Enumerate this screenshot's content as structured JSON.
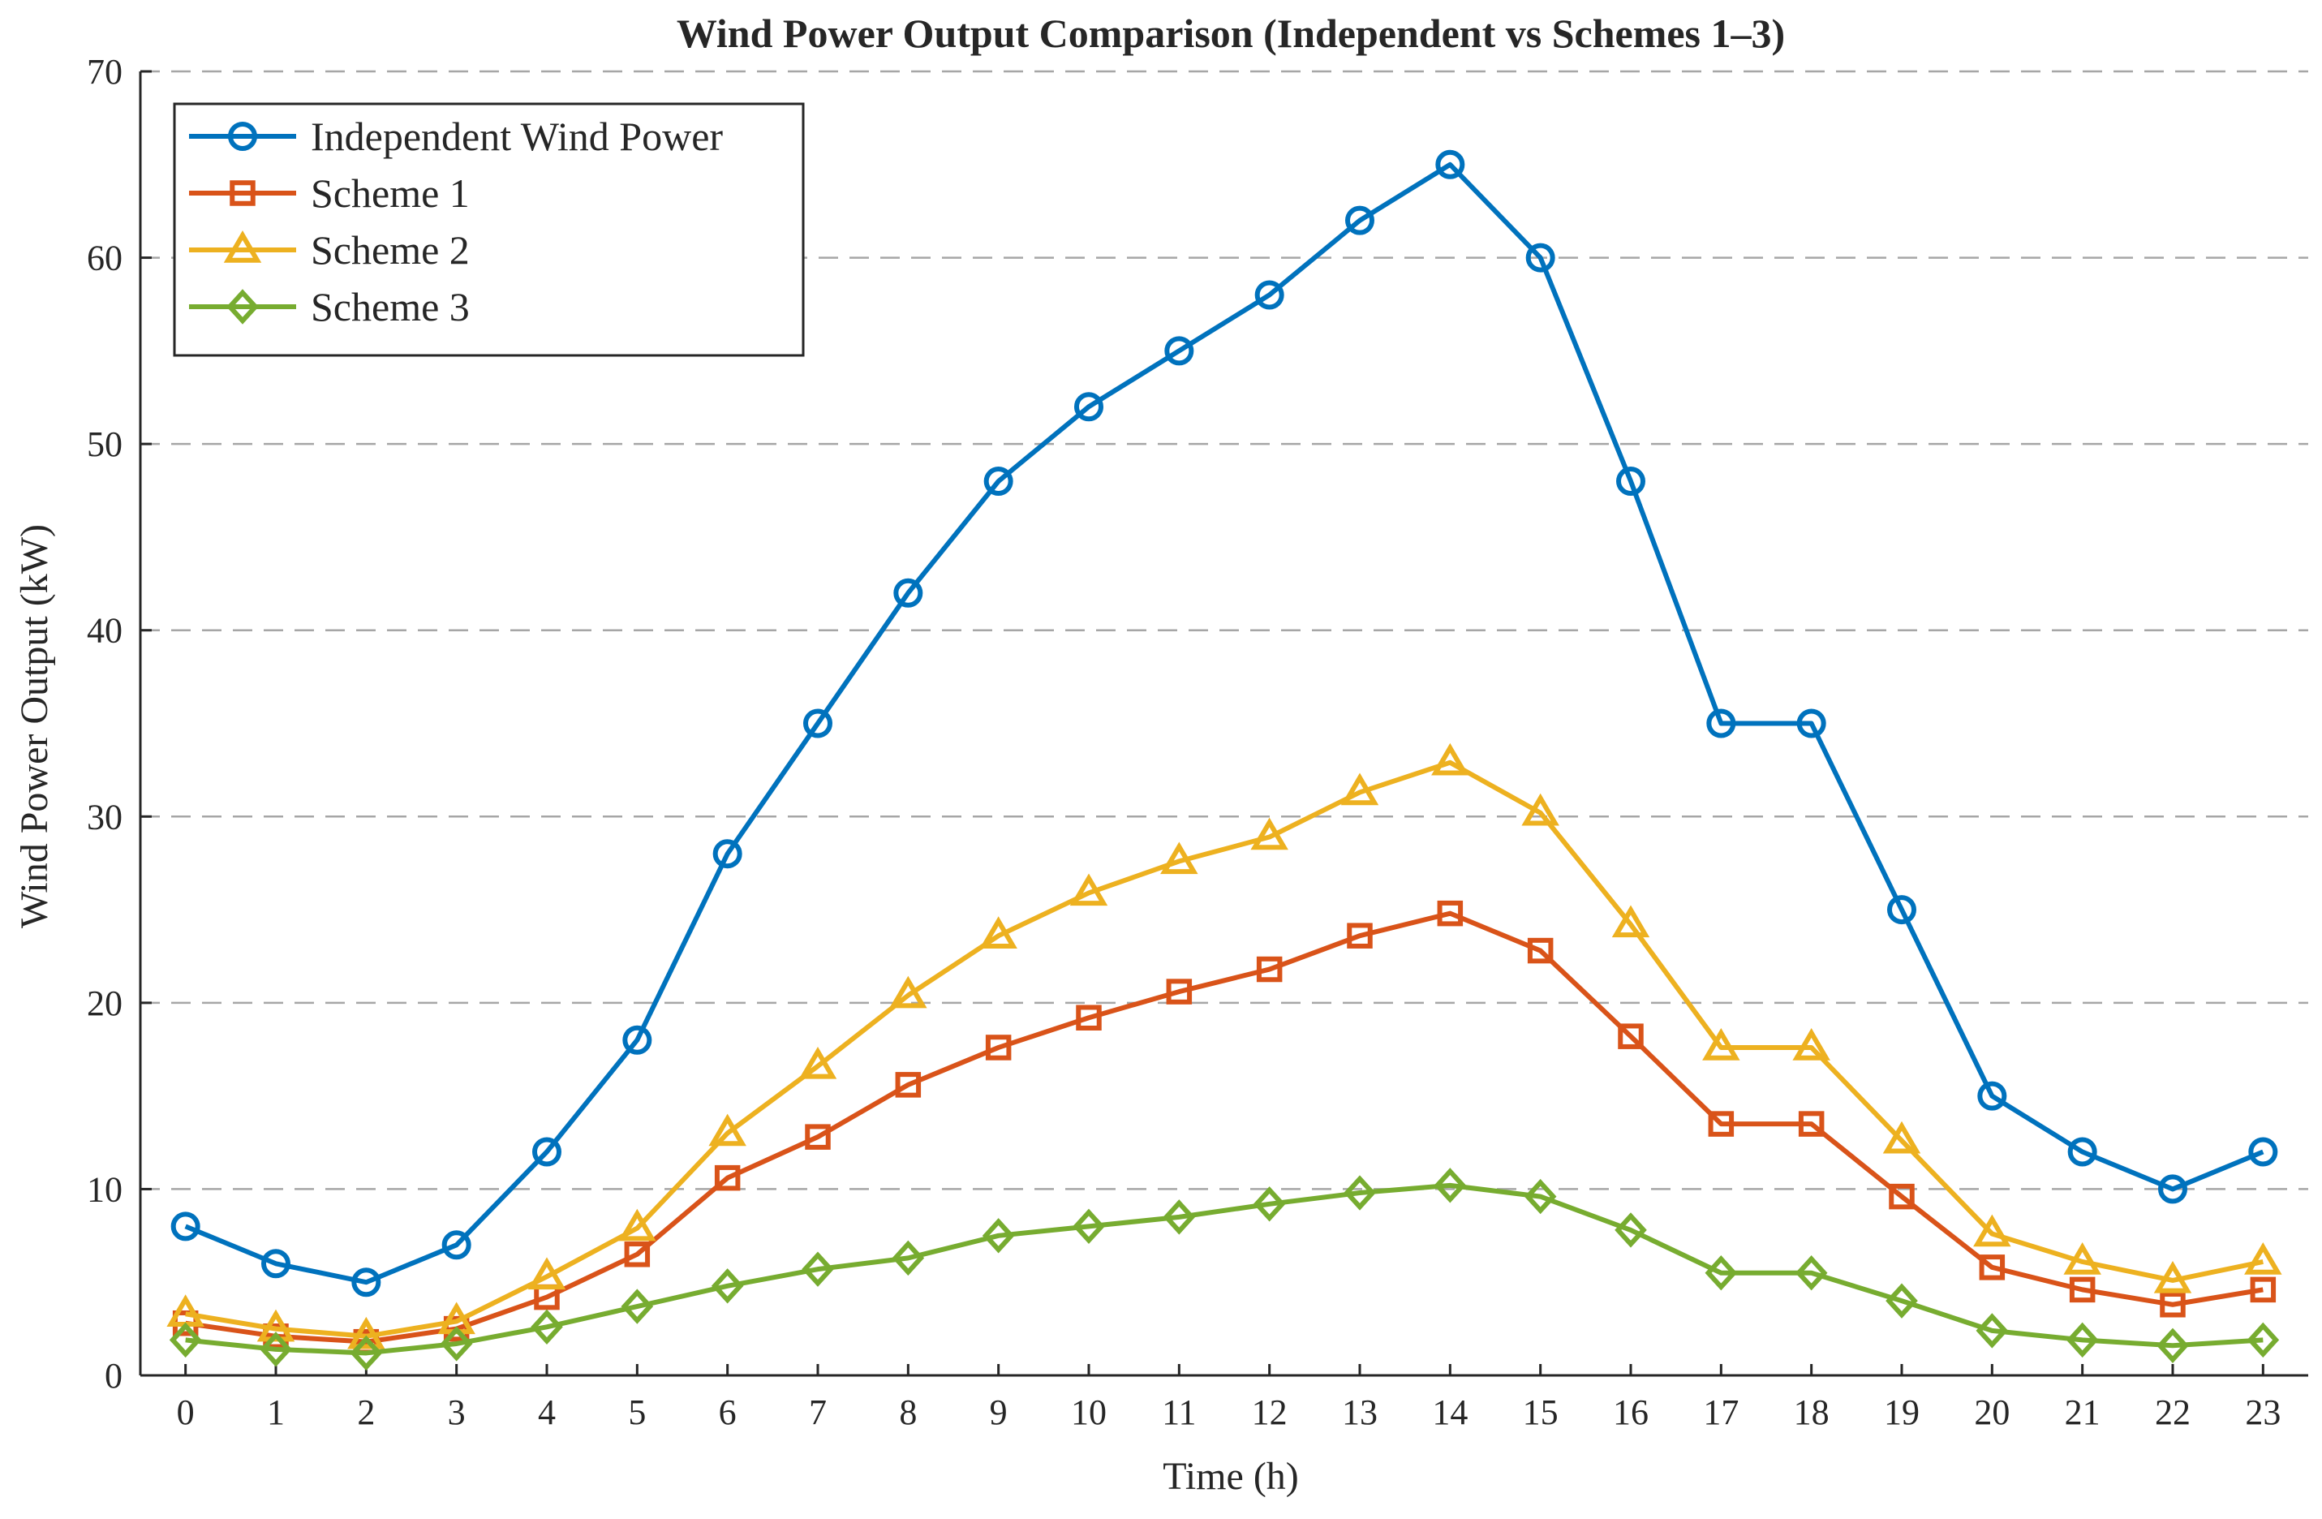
{
  "chart_data": {
    "type": "line",
    "title": "Wind Power Output Comparison (Independent vs Schemes 1–3)",
    "xlabel": "Time (h)",
    "ylabel": "Wind Power Output (kW)",
    "x": [
      0,
      1,
      2,
      3,
      4,
      5,
      6,
      7,
      8,
      9,
      10,
      11,
      12,
      13,
      14,
      15,
      16,
      17,
      18,
      19,
      20,
      21,
      22,
      23
    ],
    "xlim": [
      -0.5,
      23.5
    ],
    "ylim": [
      0,
      70
    ],
    "yticks": [
      0,
      10,
      20,
      30,
      40,
      50,
      60,
      70
    ],
    "grid": "horizontal-dashed",
    "legend_position": "top-left",
    "series": [
      {
        "name": "Independent Wind Power",
        "color": "#0072BD",
        "marker": "circle",
        "values": [
          8,
          6,
          5,
          7,
          12,
          18,
          28,
          35,
          42,
          48,
          52,
          55,
          58,
          62,
          65,
          60,
          48,
          35,
          35,
          25,
          15,
          12,
          10,
          12
        ]
      },
      {
        "name": "Scheme 1",
        "color": "#D95319",
        "marker": "square",
        "values": [
          2.8,
          2.1,
          1.8,
          2.5,
          4.2,
          6.5,
          10.6,
          12.8,
          15.6,
          17.6,
          19.2,
          20.6,
          21.8,
          23.6,
          24.8,
          22.8,
          18.2,
          13.5,
          13.5,
          9.6,
          5.8,
          4.6,
          3.8,
          4.6
        ]
      },
      {
        "name": "Scheme 2",
        "color": "#EDB120",
        "marker": "triangle",
        "values": [
          3.3,
          2.5,
          2.1,
          2.9,
          5.3,
          7.9,
          13,
          16.6,
          20.4,
          23.6,
          25.9,
          27.6,
          28.9,
          31.3,
          32.9,
          30.2,
          24.2,
          17.6,
          17.6,
          12.6,
          7.6,
          6.1,
          5.1,
          6.1
        ]
      },
      {
        "name": "Scheme 3",
        "color": "#77AC30",
        "marker": "diamond",
        "values": [
          1.9,
          1.4,
          1.2,
          1.7,
          2.6,
          3.7,
          4.8,
          5.7,
          6.3,
          7.5,
          8.0,
          8.5,
          9.2,
          9.8,
          10.2,
          9.6,
          7.8,
          5.5,
          5.5,
          4.0,
          2.4,
          1.9,
          1.6,
          1.9
        ]
      }
    ]
  }
}
